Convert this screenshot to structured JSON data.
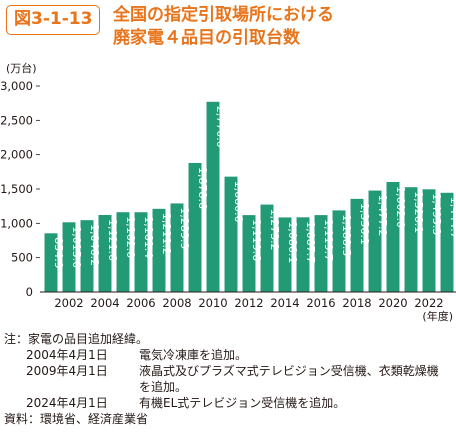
{
  "figure": {
    "label": "図3-1-13",
    "title_lines": [
      "全国の指定引取場所における",
      "廃家電４品目の引取台数"
    ]
  },
  "chart_data": {
    "type": "bar",
    "unit_label": "(万台)",
    "x_unit_label": "(年度)",
    "x": [
      2001,
      2002,
      2003,
      2004,
      2005,
      2006,
      2007,
      2008,
      2009,
      2010,
      2011,
      2012,
      2013,
      2014,
      2015,
      2016,
      2017,
      2018,
      2019,
      2020,
      2021,
      2022,
      2023
    ],
    "values": [
      854.9,
      1015.0,
      1046.2,
      1121.6,
      1162.0,
      1161.4,
      1211.2,
      1289.9,
      1878.6,
      2770.0,
      1680.0,
      1119.6,
      1273.2,
      1086.1,
      1087.7,
      1119.7,
      1188.5,
      1356.1,
      1477.2,
      1602.0,
      1526.1,
      1495.3,
      1444.7
    ],
    "value_labels": [
      "854.9",
      "1,015.0",
      "1,046.2",
      "1,121.6",
      "1,162.0",
      "1,161.4",
      "1,211.2",
      "1,289.9",
      "1,878.6",
      "2,770.0",
      "1,680.0",
      "1,119.6",
      "1,273.2",
      "1,086.1",
      "1,087.7",
      "1,119.7",
      "1,188.5",
      "1,356.1",
      "1,477.2",
      "1,602.0",
      "1,526.1",
      "1,495.3",
      "1,444.7"
    ],
    "x_tick_labels": [
      "2002",
      "2004",
      "2006",
      "2008",
      "2010",
      "2012",
      "2014",
      "2016",
      "2018",
      "2020",
      "2022"
    ],
    "y_ticks": [
      0,
      500,
      1000,
      1500,
      2000,
      2500,
      3000
    ],
    "y_tick_labels": [
      "0",
      "500",
      "1,000",
      "1,500",
      "2,000",
      "2,500",
      "3,000"
    ],
    "ylim": [
      0,
      3000
    ],
    "bar_color": "#239a76",
    "label_color": "#ffffff"
  },
  "notes": {
    "heading": "注：家電の品目追加経緯。",
    "entries": [
      {
        "date": "2004年4月1日",
        "text": "電気冷凍庫を追加。"
      },
      {
        "date": "2009年4月1日",
        "text": "液晶式及びプラズマ式テレビジョン受信機、衣類乾燥機"
      }
    ],
    "continuation": "を追加。",
    "entries2": [
      {
        "date": "2024年4月1日",
        "text": "有機EL式テレビジョン受信機を追加。"
      }
    ],
    "source": "資料：環境省、経済産業省"
  }
}
